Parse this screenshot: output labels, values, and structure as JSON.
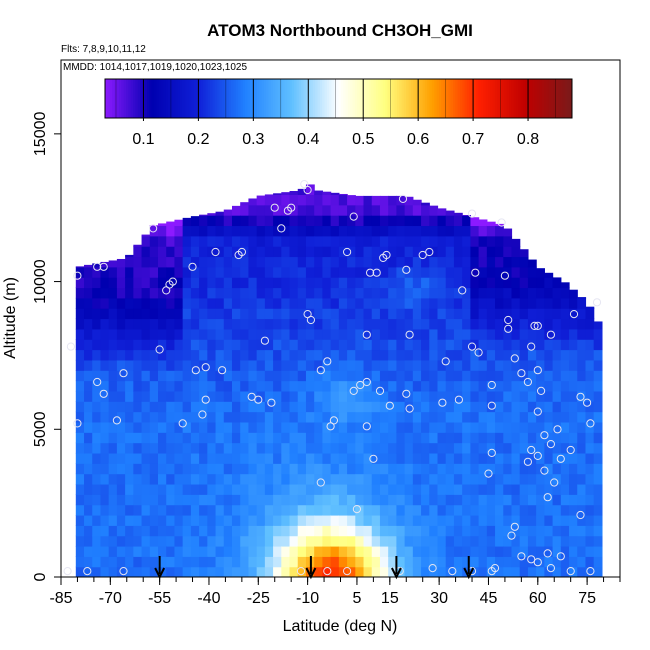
{
  "chart_data": {
    "type": "heatmap",
    "title": "ATOM3 Northbound CH3OH_GMI",
    "subtitle_flights": "Flts: 7,8,9,10,11,12",
    "subtitle_dates": "MMDD: 1014,1017,1019,1020,1023,1025",
    "xlabel": "Latitude (deg N)",
    "ylabel": "Altitude (m)",
    "xlim": [
      -85,
      85
    ],
    "ylim": [
      0,
      17500
    ],
    "x_ticks": [
      -85,
      -70,
      -55,
      -40,
      -25,
      -10,
      5,
      15,
      30,
      45,
      60,
      75
    ],
    "x_tick_labels": [
      "-85",
      "-70",
      "-55",
      "-40",
      "-25",
      "-10",
      "5",
      "15",
      "30",
      "45",
      "60",
      "75"
    ],
    "y_ticks": [
      0,
      5000,
      10000,
      15000
    ],
    "y_tick_labels": [
      "0",
      "5000",
      "10000",
      "15000"
    ],
    "colorbar": {
      "range": [
        0.03,
        0.88
      ],
      "ticks": [
        0.1,
        0.2,
        0.3,
        0.4,
        0.5,
        0.6,
        0.7,
        0.8
      ],
      "tick_labels": [
        "0.1",
        "0.2",
        "0.3",
        "0.4",
        "0.5",
        "0.6",
        "0.7",
        "0.8"
      ],
      "colors": [
        "#8c1aff",
        "#0000b0",
        "#1020d8",
        "#2080ff",
        "#60c0ff",
        "#ffffff",
        "#ffff80",
        "#ffa000",
        "#ff2000",
        "#c00000",
        "#7a1a1a"
      ]
    },
    "arrows_lat": [
      -55,
      -9,
      17,
      39
    ],
    "coverage": [
      {
        "lat": -80,
        "top": 10500
      },
      {
        "lat": -75,
        "top": 10600
      },
      {
        "lat": -65,
        "top": 10800
      },
      {
        "lat": -57,
        "top": 11900
      },
      {
        "lat": -45,
        "top": 12200
      },
      {
        "lat": -35,
        "top": 12400
      },
      {
        "lat": -25,
        "top": 12900
      },
      {
        "lat": -12,
        "top": 13100
      },
      {
        "lat": -10,
        "top": 13400
      },
      {
        "lat": -8,
        "top": 13100
      },
      {
        "lat": 5,
        "top": 12900
      },
      {
        "lat": 20,
        "top": 12900
      },
      {
        "lat": 30,
        "top": 12500
      },
      {
        "lat": 40,
        "top": 12200
      },
      {
        "lat": 50,
        "top": 11900
      },
      {
        "lat": 60,
        "top": 10500
      },
      {
        "lat": 68,
        "top": 10000
      },
      {
        "lat": 75,
        "top": 9300
      },
      {
        "lat": 79,
        "top": 8500
      }
    ],
    "observations": [
      [
        -80,
        10200
      ],
      [
        -74,
        10500
      ],
      [
        -72,
        10500
      ],
      [
        -82,
        7800
      ],
      [
        -74,
        6600
      ],
      [
        -72,
        6200
      ],
      [
        -66,
        6900
      ],
      [
        -80,
        5200
      ],
      [
        -68,
        5300
      ],
      [
        -83,
        200
      ],
      [
        -77,
        200
      ],
      [
        -66,
        200
      ],
      [
        -57,
        11800
      ],
      [
        -53,
        9700
      ],
      [
        -52,
        9900
      ],
      [
        -51,
        10000
      ],
      [
        -55,
        7700
      ],
      [
        -45,
        10500
      ],
      [
        -44,
        7000
      ],
      [
        -41,
        7100
      ],
      [
        -36,
        7000
      ],
      [
        -41,
        6000
      ],
      [
        -42,
        5500
      ],
      [
        -48,
        5200
      ],
      [
        -38,
        11000
      ],
      [
        -30,
        11000
      ],
      [
        -31,
        10900
      ],
      [
        -27,
        6100
      ],
      [
        -25,
        6000
      ],
      [
        -23,
        8000
      ],
      [
        -20,
        12500
      ],
      [
        -18,
        11800
      ],
      [
        -21,
        5900
      ],
      [
        -16,
        12400
      ],
      [
        -15,
        12500
      ],
      [
        -11,
        13300
      ],
      [
        -10,
        13100
      ],
      [
        -10,
        8900
      ],
      [
        -9,
        8700
      ],
      [
        -6,
        7000
      ],
      [
        -4,
        7300
      ],
      [
        -2,
        5300
      ],
      [
        -3,
        5100
      ],
      [
        -6,
        3200
      ],
      [
        -12,
        200
      ],
      [
        -4,
        200
      ],
      [
        2,
        200
      ],
      [
        4,
        12200
      ],
      [
        2,
        11000
      ],
      [
        9,
        10300
      ],
      [
        11,
        10300
      ],
      [
        8,
        8200
      ],
      [
        6,
        6500
      ],
      [
        4,
        6300
      ],
      [
        8,
        6600
      ],
      [
        8,
        5100
      ],
      [
        5,
        2300
      ],
      [
        10,
        4000
      ],
      [
        14,
        10900
      ],
      [
        12,
        6300
      ],
      [
        15,
        5800
      ],
      [
        13,
        10800
      ],
      [
        20,
        10400
      ],
      [
        19,
        12800
      ],
      [
        21,
        8200
      ],
      [
        20,
        6200
      ],
      [
        21,
        5700
      ],
      [
        18,
        200
      ],
      [
        25,
        10900
      ],
      [
        27,
        11000
      ],
      [
        31,
        5900
      ],
      [
        32,
        7300
      ],
      [
        28,
        300
      ],
      [
        37,
        9700
      ],
      [
        36,
        6000
      ],
      [
        34,
        200
      ],
      [
        40,
        12300
      ],
      [
        41,
        10300
      ],
      [
        40,
        7800
      ],
      [
        42,
        7600
      ],
      [
        46,
        6500
      ],
      [
        46,
        5800
      ],
      [
        46,
        4200
      ],
      [
        45,
        3500
      ],
      [
        49,
        12000
      ],
      [
        50,
        10200
      ],
      [
        51,
        8700
      ],
      [
        51,
        8400
      ],
      [
        53,
        7400
      ],
      [
        55,
        6900
      ],
      [
        57,
        6600
      ],
      [
        60,
        7000
      ],
      [
        61,
        6300
      ],
      [
        60,
        5600
      ],
      [
        62,
        4800
      ],
      [
        64,
        4500
      ],
      [
        58,
        4300
      ],
      [
        60,
        4100
      ],
      [
        57,
        3900
      ],
      [
        62,
        3600
      ],
      [
        65,
        3200
      ],
      [
        70,
        4300
      ],
      [
        71,
        8900
      ],
      [
        73,
        6100
      ],
      [
        75,
        5900
      ],
      [
        76,
        5200
      ],
      [
        73,
        2100
      ],
      [
        60,
        500
      ],
      [
        64,
        300
      ],
      [
        70,
        200
      ],
      [
        76,
        200
      ],
      [
        53,
        1700
      ],
      [
        52,
        1400
      ],
      [
        55,
        700
      ],
      [
        58,
        600
      ],
      [
        63,
        800
      ],
      [
        67,
        700
      ],
      [
        40,
        200
      ],
      [
        46,
        200
      ],
      [
        47,
        300
      ],
      [
        64,
        8200
      ],
      [
        59,
        8500
      ],
      [
        60,
        8500
      ],
      [
        58,
        7800
      ],
      [
        63,
        2700
      ],
      [
        66,
        5000
      ],
      [
        67,
        4000
      ],
      [
        78,
        9300
      ]
    ]
  }
}
